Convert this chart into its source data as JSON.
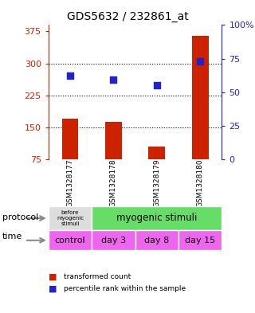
{
  "title": "GDS5632 / 232861_at",
  "samples": [
    "GSM1328177",
    "GSM1328178",
    "GSM1328179",
    "GSM1328180"
  ],
  "bar_values": [
    170,
    162,
    105,
    365
  ],
  "bar_bottom": [
    75,
    75,
    75,
    75
  ],
  "dot_values": [
    62,
    59,
    55,
    73
  ],
  "ylim_left": [
    75,
    390
  ],
  "ylim_right": [
    0,
    100
  ],
  "yticks_left": [
    75,
    150,
    225,
    300,
    375
  ],
  "yticks_right": [
    0,
    25,
    50,
    75,
    100
  ],
  "ytick_labels_left": [
    "75",
    "150",
    "225",
    "300",
    "375"
  ],
  "ytick_labels_right": [
    "0",
    "25",
    "50",
    "75",
    "100%"
  ],
  "bar_color": "#cc2200",
  "dot_color": "#2222cc",
  "bg_color": "#ffffff",
  "plot_bg": "#ffffff",
  "protocol_colors": [
    "#dddddd",
    "#66dd66"
  ],
  "time_labels": [
    "control",
    "day 3",
    "day 8",
    "day 15"
  ],
  "time_color": "#ee66ee",
  "left_axis_color": "#cc2200",
  "right_axis_color": "#2222cc",
  "legend_red": "transformed count",
  "legend_blue": "percentile rank within the sample",
  "gridline_yvals": [
    150,
    225,
    300
  ]
}
